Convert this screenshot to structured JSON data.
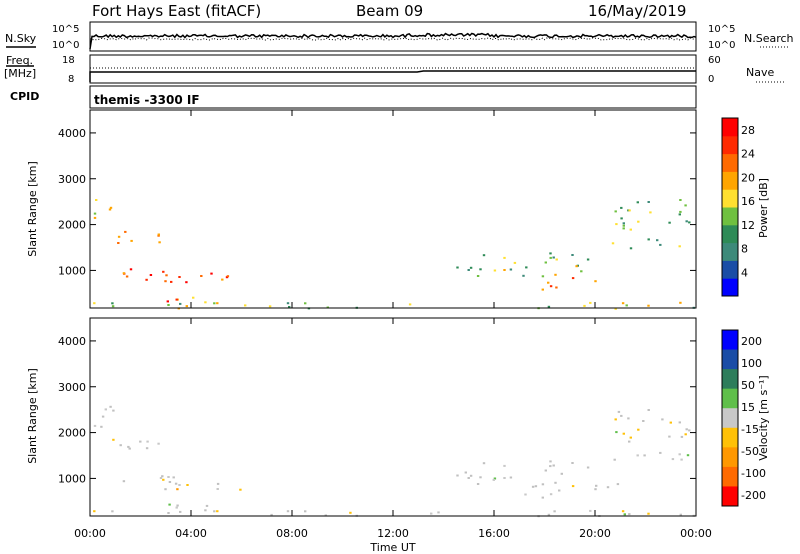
{
  "header": {
    "station": "Fort Hays East (fitACF)",
    "beam": "Beam 09",
    "date": "16/May/2019"
  },
  "colors": {
    "power": [
      "#0000ff",
      "#1a4da6",
      "#3d8a7a",
      "#2e8b57",
      "#6fc040",
      "#ffe030",
      "#ffa500",
      "#ff6a00",
      "#ff2a00",
      "#ff0000"
    ],
    "velocity": [
      "#0000ff",
      "#1a4da6",
      "#2e7d5b",
      "#5fbf4a",
      "#c8c8c8",
      "#ffc107",
      "#ff9800",
      "#ff6a00",
      "#ff0000"
    ],
    "ground_scatter": "#c0c0c0"
  },
  "top_panel": {
    "left_label": "N.Sky",
    "left_ticks": [
      "10^5",
      "10^0"
    ],
    "right_label": "N.Search",
    "right_ticks": [
      "10^5",
      "10^0"
    ]
  },
  "freq_panel": {
    "left_label_1": "Freq.",
    "left_label_2": "[MHz]",
    "left_ticks": [
      "18",
      "8"
    ],
    "right_label": "Nave",
    "right_ticks": [
      "60",
      "0"
    ]
  },
  "cpid": {
    "label": "CPID",
    "value": "themis -3300 IF"
  },
  "power_panel": {
    "ylabel": "Slant Range [km]",
    "yticks": [
      "4000",
      "3000",
      "2000",
      "1000"
    ],
    "cbar_label": "Power [dB]",
    "cbar_ticks": [
      "28",
      "24",
      "20",
      "16",
      "12",
      "8",
      "4"
    ]
  },
  "velocity_panel": {
    "ylabel": "Slant Range [km]",
    "yticks": [
      "4000",
      "3000",
      "2000",
      "1000"
    ],
    "cbar_label": "Velocity [m s⁻¹]",
    "cbar_ticks": [
      "200",
      "100",
      "50",
      "15",
      "-15",
      "-50",
      "-100",
      "-200"
    ]
  },
  "x_axis": {
    "ticks": [
      "00:00",
      "04:00",
      "08:00",
      "12:00",
      "16:00",
      "20:00",
      "00:00"
    ],
    "label": "Time UT"
  },
  "chart_data": [
    {
      "type": "heatmap",
      "title": "Power",
      "ylabel": "Slant Range [km]",
      "xlabel": "Time UT",
      "xlim": [
        0,
        24
      ],
      "ylim": [
        180,
        4500
      ],
      "colorbar": {
        "label": "Power [dB]",
        "range": [
          0,
          30
        ]
      },
      "regions": [
        {
          "t": [
            0.0,
            1.0
          ],
          "r": [
            2100,
            2600
          ],
          "value": 16
        },
        {
          "t": [
            0.5,
            3.5
          ],
          "r": [
            1600,
            1900
          ],
          "value": 20
        },
        {
          "t": [
            1.0,
            6.0
          ],
          "r": [
            750,
            1100
          ],
          "value": 24
        },
        {
          "t": [
            1.5,
            5.5
          ],
          "r": [
            300,
            450
          ],
          "value": 22
        },
        {
          "t": [
            0.0,
            24.0
          ],
          "r": [
            180,
            320
          ],
          "value": 14
        },
        {
          "t": [
            13.5,
            20.0
          ],
          "r": [
            900,
            1400
          ],
          "value": 14
        },
        {
          "t": [
            17.0,
            21.0
          ],
          "r": [
            600,
            1000
          ],
          "value": 20
        },
        {
          "t": [
            20.5,
            23.8
          ],
          "r": [
            1400,
            2600
          ],
          "value": 12
        }
      ]
    },
    {
      "type": "heatmap",
      "title": "Velocity",
      "ylabel": "Slant Range [km]",
      "xlabel": "Time UT",
      "xlim": [
        0,
        24
      ],
      "ylim": [
        180,
        4500
      ],
      "colorbar": {
        "label": "Velocity [m s⁻¹]",
        "range": [
          -200,
          200
        ]
      },
      "regions": [
        {
          "t": [
            0.0,
            1.0
          ],
          "r": [
            2100,
            2600
          ],
          "value": 0
        },
        {
          "t": [
            0.5,
            3.5
          ],
          "r": [
            1600,
            1900
          ],
          "value": 0
        },
        {
          "t": [
            1.0,
            6.0
          ],
          "r": [
            750,
            1100
          ],
          "value": -40
        },
        {
          "t": [
            1.5,
            5.5
          ],
          "r": [
            300,
            450
          ],
          "value": 0
        },
        {
          "t": [
            0.0,
            24.0
          ],
          "r": [
            180,
            320
          ],
          "value": -20
        },
        {
          "t": [
            13.5,
            20.0
          ],
          "r": [
            900,
            1400
          ],
          "value": 0
        },
        {
          "t": [
            17.0,
            21.0
          ],
          "r": [
            600,
            1000
          ],
          "value": 0
        },
        {
          "t": [
            20.5,
            23.8
          ],
          "r": [
            1400,
            2600
          ],
          "value": 0
        }
      ]
    }
  ]
}
